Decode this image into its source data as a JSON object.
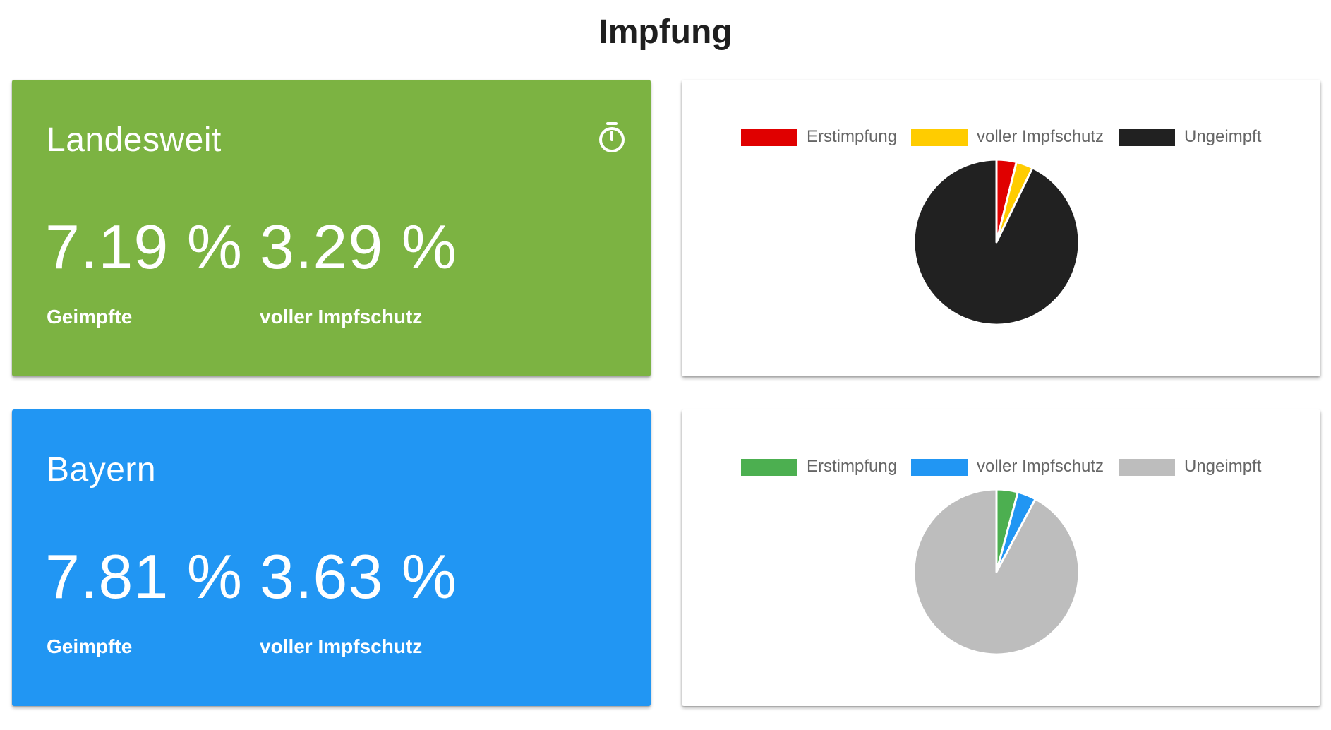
{
  "page": {
    "title": "Impfung"
  },
  "cards": [
    {
      "region": "Landesweit",
      "color": "#7cb342",
      "icon": "timer-icon",
      "stats": [
        {
          "value": "7.19 %",
          "label": "Geimpfte"
        },
        {
          "value": "3.29 %",
          "label": "voller Impfschutz"
        }
      ]
    },
    {
      "region": "Bayern",
      "color": "#2196f3",
      "stats": [
        {
          "value": "7.81 %",
          "label": "Geimpfte"
        },
        {
          "value": "3.63 %",
          "label": "voller Impfschutz"
        }
      ]
    }
  ],
  "chart_data": [
    {
      "type": "pie",
      "legend_position": "top",
      "categories": [
        "Erstimpfung",
        "voller Impfschutz",
        "Ungeimpft"
      ],
      "values": [
        3.9,
        3.29,
        92.81
      ],
      "colors": [
        "#e00000",
        "#ffcc00",
        "#212121"
      ]
    },
    {
      "type": "pie",
      "legend_position": "top",
      "categories": [
        "Erstimpfung",
        "voller Impfschutz",
        "Ungeimpft"
      ],
      "values": [
        4.18,
        3.63,
        92.19
      ],
      "colors": [
        "#4caf50",
        "#2196f3",
        "#bdbdbd"
      ]
    }
  ]
}
